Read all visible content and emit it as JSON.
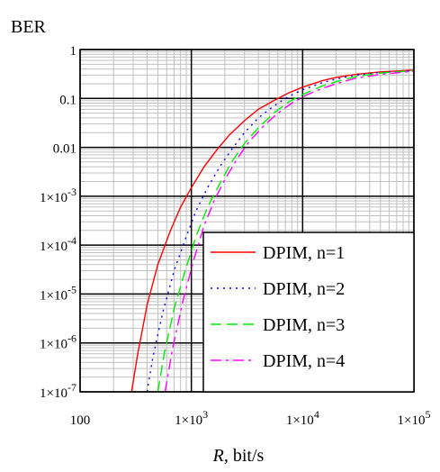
{
  "chart_data": {
    "type": "line",
    "title": "BER",
    "xlabel": "R, bit/s",
    "x_scale": "log",
    "y_scale": "log",
    "xlim": [
      100,
      100000
    ],
    "ylim": [
      1e-07,
      1
    ],
    "grid": true,
    "legend_position": "bottom-right",
    "x_tick_labels": [
      "100",
      "1×10^3",
      "1×10^4",
      "1×10^5"
    ],
    "y_tick_labels": [
      "1",
      "0.1",
      "0.01",
      "1×10^-3",
      "1×10^-4",
      "1×10^-5",
      "1×10^-6",
      "1×10^-7"
    ],
    "series": [
      {
        "name": "DPIM, n=1",
        "color": "#ff0000",
        "dash": "solid",
        "x": [
          290,
          330,
          400,
          500,
          650,
          800,
          1000,
          1300,
          1700,
          2200,
          3000,
          4000,
          5500,
          7500,
          10000,
          15000,
          20000,
          30000,
          50000,
          100000
        ],
        "y": [
          1e-07,
          6e-07,
          6e-06,
          4e-05,
          0.0002,
          0.0006,
          0.0015,
          0.004,
          0.009,
          0.018,
          0.035,
          0.06,
          0.09,
          0.13,
          0.17,
          0.23,
          0.27,
          0.31,
          0.35,
          0.38
        ]
      },
      {
        "name": "DPIM, n=2",
        "color": "#0000ff",
        "dash": "dotted",
        "x": [
          400,
          450,
          550,
          700,
          900,
          1100,
          1400,
          1800,
          2300,
          3000,
          4000,
          5500,
          7500,
          10000,
          15000,
          20000,
          30000,
          50000,
          100000
        ],
        "y": [
          1e-07,
          5e-07,
          4e-06,
          3e-05,
          0.00015,
          0.0005,
          0.0015,
          0.004,
          0.009,
          0.02,
          0.04,
          0.07,
          0.11,
          0.15,
          0.21,
          0.25,
          0.3,
          0.34,
          0.37
        ]
      },
      {
        "name": "DPIM, n=3",
        "color": "#00ee00",
        "dash": "dashed",
        "x": [
          500,
          570,
          700,
          880,
          1100,
          1400,
          1800,
          2300,
          3000,
          4000,
          5500,
          7500,
          10000,
          15000,
          20000,
          30000,
          50000,
          100000
        ],
        "y": [
          1e-07,
          6e-07,
          5e-06,
          3e-05,
          0.00015,
          0.0006,
          0.0018,
          0.005,
          0.012,
          0.025,
          0.05,
          0.085,
          0.12,
          0.18,
          0.22,
          0.28,
          0.33,
          0.37
        ]
      },
      {
        "name": "DPIM, n=4",
        "color": "#ff00ff",
        "dash": "dashdot",
        "x": [
          580,
          680,
          850,
          1050,
          1300,
          1600,
          2000,
          2600,
          3300,
          4500,
          6000,
          8000,
          11000,
          15000,
          20000,
          30000,
          50000,
          100000
        ],
        "y": [
          1e-07,
          8e-07,
          8e-06,
          5e-05,
          0.00025,
          0.0008,
          0.0022,
          0.006,
          0.013,
          0.028,
          0.05,
          0.08,
          0.12,
          0.16,
          0.2,
          0.26,
          0.31,
          0.36
        ]
      }
    ]
  }
}
